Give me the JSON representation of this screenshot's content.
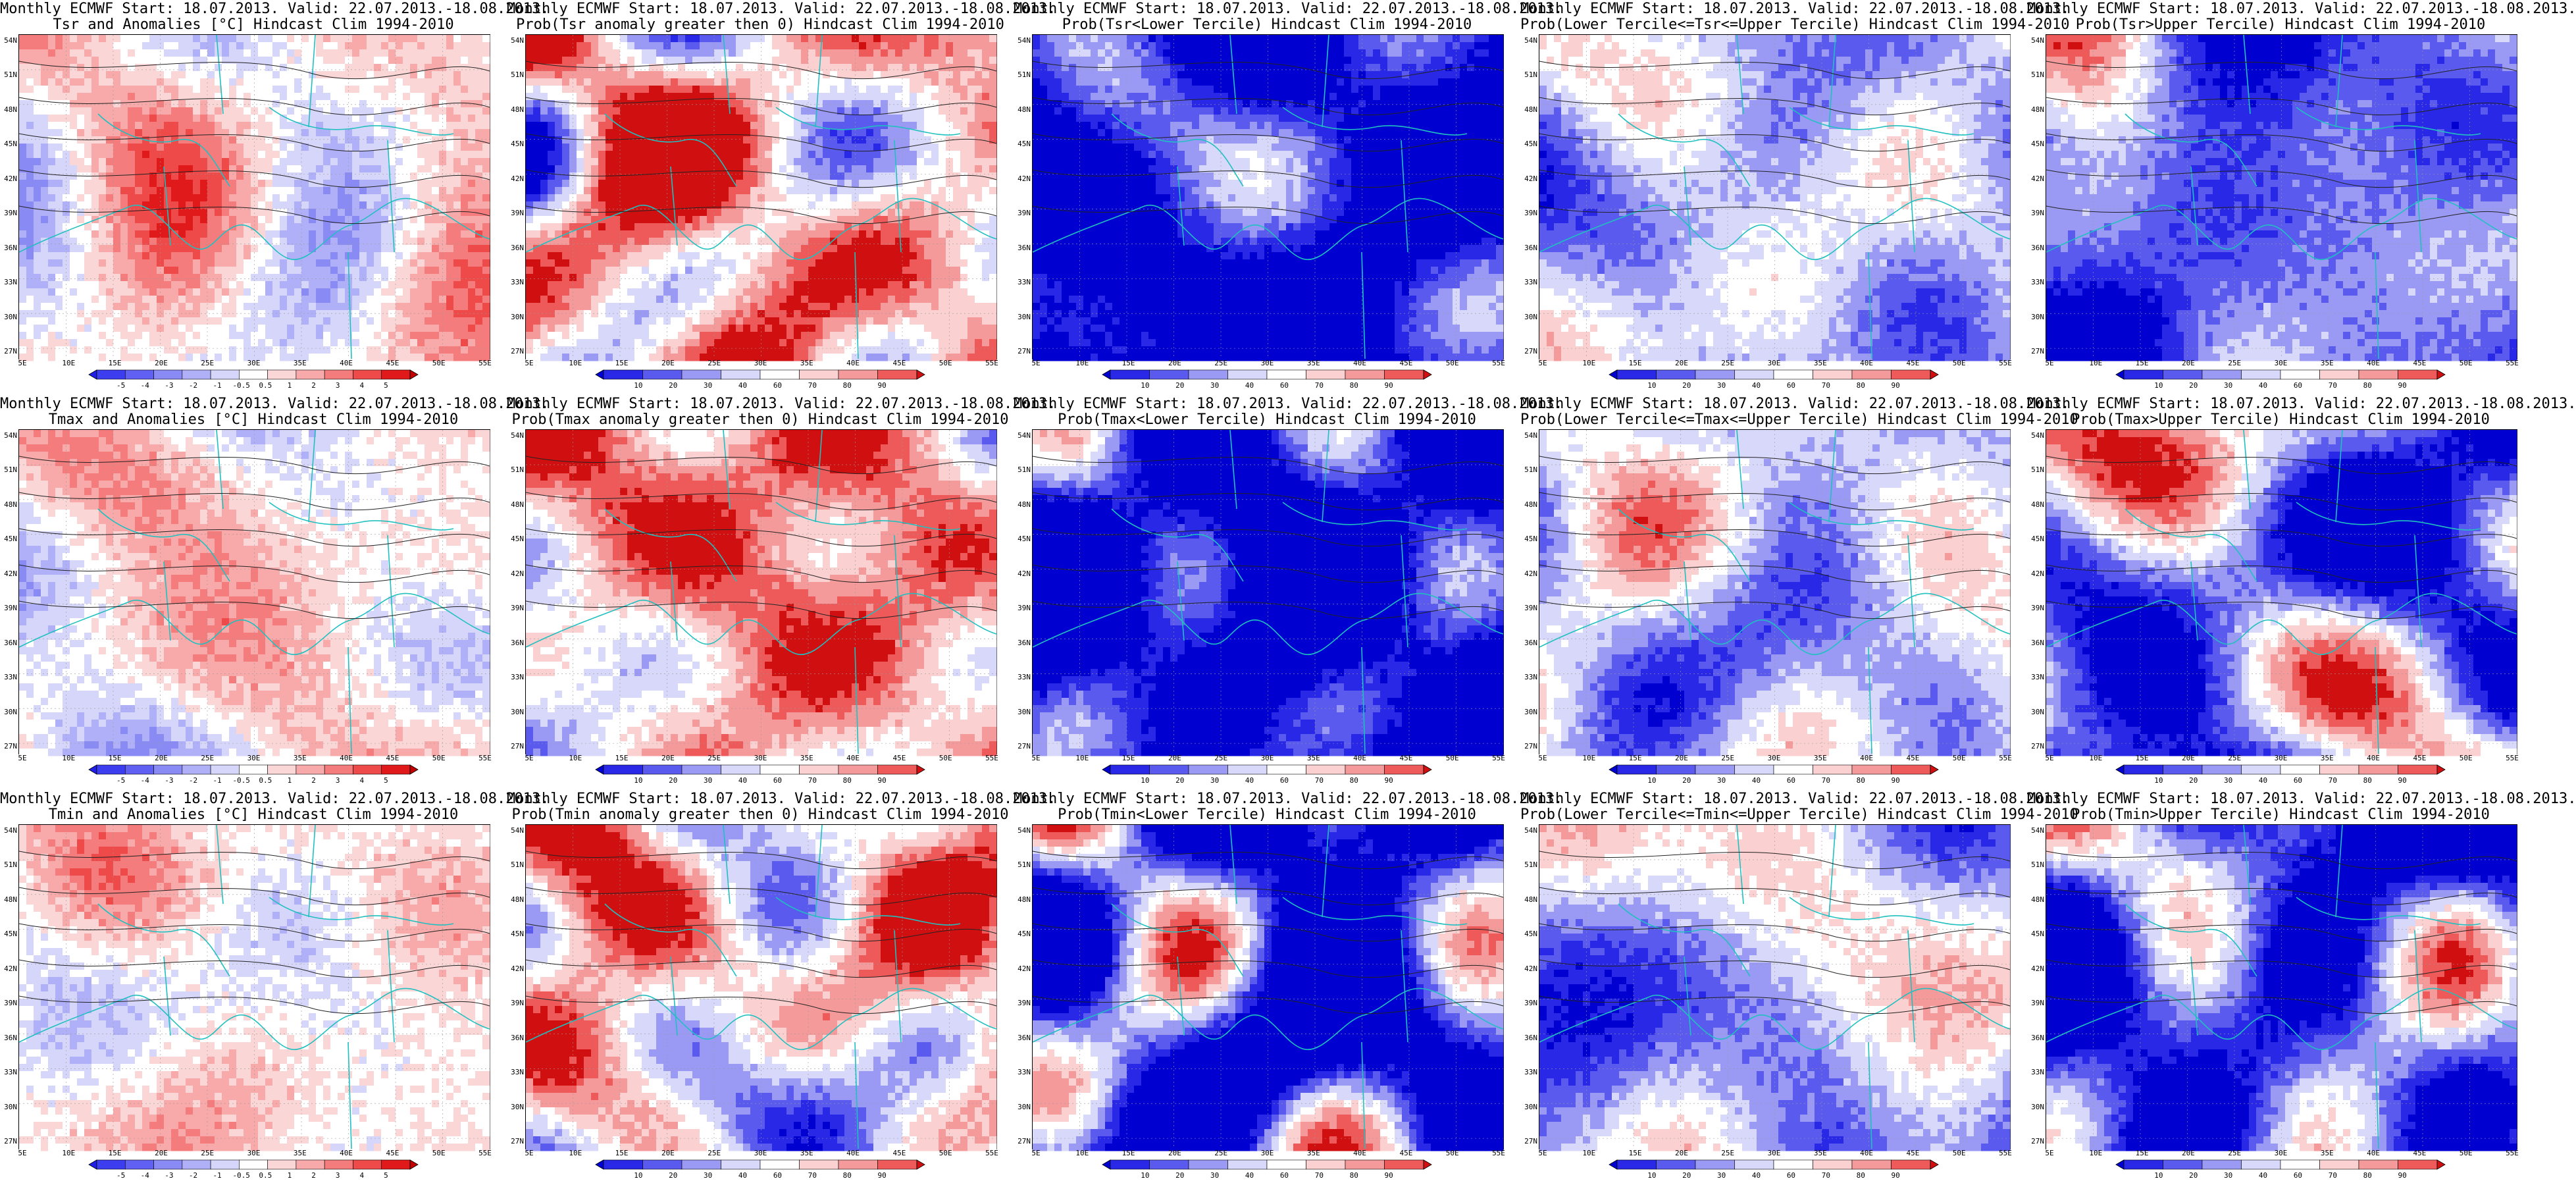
{
  "lat_labels": [
    "54N",
    "51N",
    "48N",
    "45N",
    "42N",
    "39N",
    "36N",
    "33N",
    "30N",
    "27N"
  ],
  "lon_labels": [
    "5E",
    "10E",
    "15E",
    "20E",
    "25E",
    "30E",
    "35E",
    "40E",
    "45E",
    "50E",
    "55E"
  ],
  "anomaly_scale": {
    "labels": [
      "-5",
      "-4",
      "-3",
      "-2",
      "-1",
      "-0.5",
      "0.5",
      "1",
      "2",
      "3",
      "4",
      "5"
    ],
    "colors": [
      "#1f1fe6",
      "#3d3df0",
      "#6060f2",
      "#8a8af5",
      "#b0b0f8",
      "#d6d6fb",
      "#ffffff",
      "#fbd6d6",
      "#f8a9a9",
      "#f47c7c",
      "#ee4a4a",
      "#e01a1a",
      "#c00000"
    ]
  },
  "prob_scale": {
    "labels": [
      "10",
      "20",
      "30",
      "40",
      "60",
      "70",
      "80",
      "90"
    ],
    "colors": [
      "#0000d0",
      "#2828e6",
      "#5a5aef",
      "#9a9af5",
      "#d8d8fb",
      "#ffffff",
      "#fbd0d0",
      "#f49a9a",
      "#ee5a5a",
      "#d01010"
    ]
  },
  "panels": [
    {
      "line1": "Monthly ECMWF Start: 18.07.2013. Valid: 22.07.2013.-18.08.2013.",
      "line2": "Tsr and Anomalies [°C] Hindcast Clim 1994-2010",
      "scale": "anomaly_scale",
      "bias": 0.15,
      "spread": 0.35,
      "seed": 11
    },
    {
      "line1": "Monthly ECMWF Start: 18.07.2013. Valid: 22.07.2013.-18.08.2013.",
      "line2": "Prob(Tsr anomaly greater then 0) Hindcast Clim 1994-2010",
      "scale": "prob_scale",
      "bias": 0.6,
      "spread": 0.9,
      "seed": 12
    },
    {
      "line1": "Monthly ECMWF Start: 18.07.2013. Valid: 22.07.2013.-18.08.2013.",
      "line2": "Prob(Tsr<Lower Tercile) Hindcast Clim 1994-2010",
      "scale": "prob_scale",
      "bias": -1.6,
      "spread": 0.8,
      "seed": 13
    },
    {
      "line1": "Monthly ECMWF Start: 18.07.2013. Valid: 22.07.2013.-18.08.2013.",
      "line2": "Prob(Lower Tercile<=Tsr<=Upper Tercile) Hindcast Clim 1994-2010",
      "scale": "prob_scale",
      "bias": -0.3,
      "spread": 0.5,
      "seed": 14
    },
    {
      "line1": "Monthly ECMWF Start: 18.07.2013. Valid: 22.07.2013.-18.08.2013.",
      "line2": "Prob(Tsr>Upper Tercile) Hindcast Clim 1994-2010",
      "scale": "prob_scale",
      "bias": -0.8,
      "spread": 1.0,
      "seed": 15
    },
    {
      "line1": "Monthly ECMWF Start: 18.07.2013. Valid: 22.07.2013.-18.08.2013.",
      "line2": "Tmax and Anomalies [°C] Hindcast Clim 1994-2010",
      "scale": "anomaly_scale",
      "bias": 0.1,
      "spread": 0.3,
      "seed": 21
    },
    {
      "line1": "Monthly ECMWF Start: 18.07.2013. Valid: 22.07.2013.-18.08.2013.",
      "line2": "Prob(Tmax anomaly greater then 0) Hindcast Clim 1994-2010",
      "scale": "prob_scale",
      "bias": 0.5,
      "spread": 0.9,
      "seed": 22
    },
    {
      "line1": "Monthly ECMWF Start: 18.07.2013. Valid: 22.07.2013.-18.08.2013.",
      "line2": "Prob(Tmax<Lower Tercile) Hindcast Clim 1994-2010",
      "scale": "prob_scale",
      "bias": -1.7,
      "spread": 0.8,
      "seed": 23
    },
    {
      "line1": "Monthly ECMWF Start: 18.07.2013. Valid: 22.07.2013.-18.08.2013.",
      "line2": "Prob(Lower Tercile<=Tmax<=Upper Tercile) Hindcast Clim 1994-2010",
      "scale": "prob_scale",
      "bias": -0.2,
      "spread": 0.5,
      "seed": 24
    },
    {
      "line1": "Monthly ECMWF Start: 18.07.2013. Valid: 22.07.2013.-18.08.2013.",
      "line2": "Prob(Tmax>Upper Tercile) Hindcast Clim 1994-2010",
      "scale": "prob_scale",
      "bias": -0.6,
      "spread": 1.0,
      "seed": 25
    },
    {
      "line1": "Monthly ECMWF Start: 18.07.2013. Valid: 22.07.2013.-18.08.2013.",
      "line2": "Tmin and Anomalies [°C] Hindcast Clim 1994-2010",
      "scale": "anomaly_scale",
      "bias": 0.1,
      "spread": 0.3,
      "seed": 31
    },
    {
      "line1": "Monthly ECMWF Start: 18.07.2013. Valid: 22.07.2013.-18.08.2013.",
      "line2": "Prob(Tmin anomaly greater then 0) Hindcast Clim 1994-2010",
      "scale": "prob_scale",
      "bias": 0.2,
      "spread": 1.1,
      "seed": 32
    },
    {
      "line1": "Monthly ECMWF Start: 18.07.2013. Valid: 22.07.2013.-18.08.2013.",
      "line2": "Prob(Tmin<Lower Tercile) Hindcast Clim 1994-2010",
      "scale": "prob_scale",
      "bias": -1.2,
      "spread": 1.1,
      "seed": 33
    },
    {
      "line1": "Monthly ECMWF Start: 18.07.2013. Valid: 22.07.2013.-18.08.2013.",
      "line2": "Prob(Lower Tercile<=Tmin<=Upper Tercile) Hindcast Clim 1994-2010",
      "scale": "prob_scale",
      "bias": -0.3,
      "spread": 0.6,
      "seed": 34
    },
    {
      "line1": "Monthly ECMWF Start: 18.07.2013. Valid: 22.07.2013.-18.08.2013.",
      "line2": "Prob(Tmin>Upper Tercile) Hindcast Clim 1994-2010",
      "scale": "prob_scale",
      "bias": -1.0,
      "spread": 1.0,
      "seed": 35
    }
  ]
}
